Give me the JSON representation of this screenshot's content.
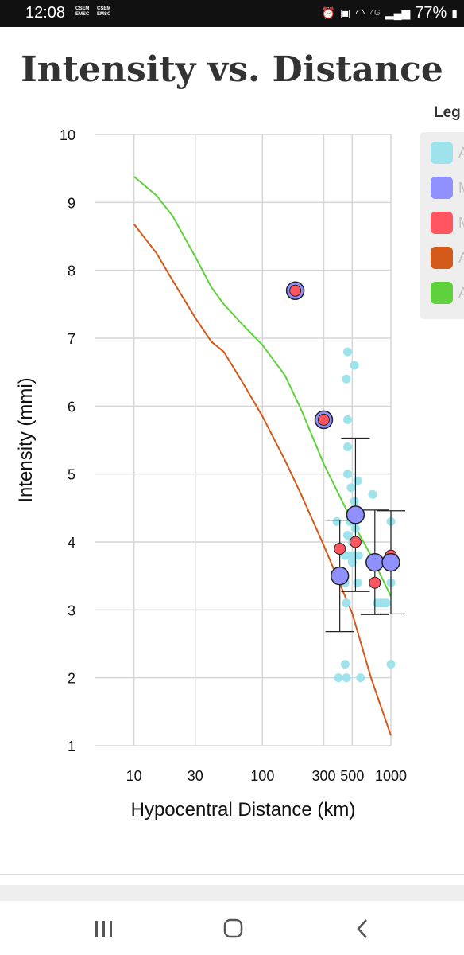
{
  "status_bar": {
    "time": "12:08",
    "carrier_top": "CSEM",
    "carrier_bottom": "EMSC",
    "network": "4G",
    "battery": "77%"
  },
  "chart_data": {
    "type": "scatter",
    "title": "Intensity vs. Distance",
    "xlabel": "Hypocentral Distance (km)",
    "ylabel": "Intensity (mmi)",
    "x_scale": "log",
    "xlim": [
      5,
      1000
    ],
    "ylim": [
      1,
      10
    ],
    "x_ticks": [
      10,
      30,
      100,
      300,
      500,
      1000
    ],
    "x_tick_labels": [
      "10",
      "30",
      "100",
      "300",
      "500",
      "1000"
    ],
    "y_ticks": [
      1,
      2,
      3,
      4,
      5,
      6,
      7,
      8,
      9,
      10
    ],
    "grid": true,
    "legend_title": "Leg",
    "legend_position": "right",
    "legend": [
      {
        "label": "A",
        "color": "#9ee3ec"
      },
      {
        "label": "M",
        "color": "#9090ff"
      },
      {
        "label": "M",
        "color": "#ff5560"
      },
      {
        "label": "A",
        "color": "#d35a18"
      },
      {
        "label": "A",
        "color": "#5fd13c"
      }
    ],
    "series": [
      {
        "color": "#9ee3ec",
        "kind": "points",
        "points": [
          [
            390,
            2.0
          ],
          [
            450,
            2.0
          ],
          [
            580,
            2.0
          ],
          [
            440,
            2.2
          ],
          [
            1000,
            2.2
          ],
          [
            450,
            3.1
          ],
          [
            780,
            3.1
          ],
          [
            830,
            3.1
          ],
          [
            870,
            3.1
          ],
          [
            920,
            3.1
          ],
          [
            1000,
            3.4
          ],
          [
            440,
            3.4
          ],
          [
            550,
            3.4
          ],
          [
            440,
            3.8
          ],
          [
            470,
            3.8
          ],
          [
            520,
            3.8
          ],
          [
            560,
            3.8
          ],
          [
            500,
            3.7
          ],
          [
            460,
            4.1
          ],
          [
            500,
            4.0
          ],
          [
            530,
            4.2
          ],
          [
            480,
            4.3
          ],
          [
            380,
            4.3
          ],
          [
            1000,
            4.3
          ],
          [
            520,
            4.6
          ],
          [
            490,
            4.8
          ],
          [
            550,
            4.9
          ],
          [
            720,
            4.7
          ],
          [
            460,
            5.0
          ],
          [
            460,
            5.4
          ],
          [
            460,
            5.8
          ],
          [
            450,
            6.4
          ],
          [
            520,
            6.6
          ],
          [
            460,
            6.8
          ]
        ]
      },
      {
        "color": "#9090ff",
        "kind": "binned_means",
        "points": [
          {
            "x": 400,
            "y": 3.5,
            "err": 0.82
          },
          {
            "x": 530,
            "y": 4.4,
            "err": 1.13
          },
          {
            "x": 750,
            "y": 3.7,
            "err": 0.77
          },
          {
            "x": 1000,
            "y": 3.7,
            "err": 0.76
          }
        ]
      },
      {
        "color": "#ff5560",
        "kind": "points_outlined",
        "points": [
          [
            180,
            7.7
          ],
          [
            300,
            5.8
          ]
        ]
      },
      {
        "color": "#ff5560",
        "kind": "points",
        "points": [
          [
            400,
            3.9
          ],
          [
            530,
            4.0
          ],
          [
            750,
            3.4
          ],
          [
            1000,
            3.8
          ]
        ]
      },
      {
        "color": "#d35a18",
        "kind": "line",
        "points": [
          [
            10,
            8.68
          ],
          [
            15,
            8.25
          ],
          [
            20,
            7.85
          ],
          [
            30,
            7.3
          ],
          [
            40,
            6.95
          ],
          [
            50,
            6.8
          ],
          [
            70,
            6.35
          ],
          [
            100,
            5.85
          ],
          [
            150,
            5.2
          ],
          [
            200,
            4.7
          ],
          [
            300,
            3.95
          ],
          [
            500,
            2.95
          ],
          [
            700,
            2.0
          ],
          [
            1000,
            1.15
          ]
        ]
      },
      {
        "color": "#5fd13c",
        "kind": "line",
        "points": [
          [
            10,
            9.38
          ],
          [
            15,
            9.1
          ],
          [
            20,
            8.8
          ],
          [
            30,
            8.2
          ],
          [
            40,
            7.75
          ],
          [
            50,
            7.5
          ],
          [
            70,
            7.2
          ],
          [
            100,
            6.9
          ],
          [
            150,
            6.45
          ],
          [
            200,
            5.95
          ],
          [
            300,
            5.15
          ],
          [
            500,
            4.3
          ],
          [
            700,
            3.8
          ],
          [
            1000,
            3.2
          ]
        ]
      }
    ]
  }
}
